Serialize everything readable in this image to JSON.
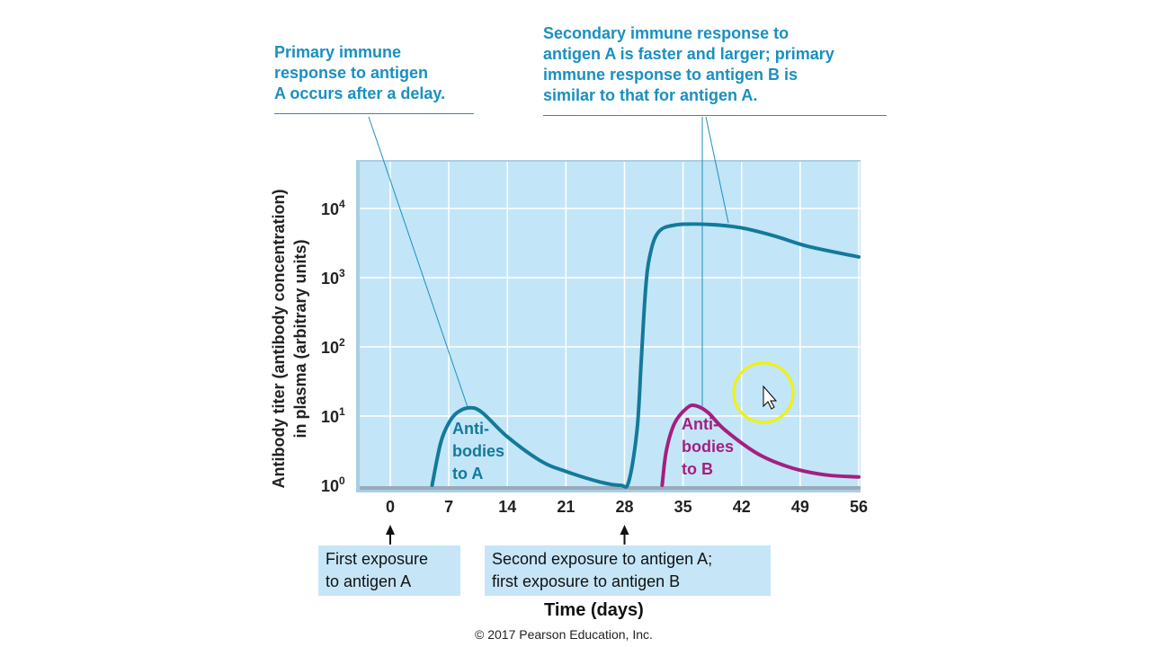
{
  "chart_data": {
    "type": "line",
    "xlabel": "Time (days)",
    "ylabel_line1": "Antibody titer (antibody concentration)",
    "ylabel_line2": "in plasma (arbitrary units)",
    "x_ticks": [
      "0",
      "7",
      "14",
      "21",
      "28",
      "35",
      "42",
      "49",
      "56"
    ],
    "y_ticks": [
      {
        "base": "10",
        "exp": "0"
      },
      {
        "base": "10",
        "exp": "1"
      },
      {
        "base": "10",
        "exp": "2"
      },
      {
        "base": "10",
        "exp": "3"
      },
      {
        "base": "10",
        "exp": "4"
      }
    ],
    "xlim": [
      -3.5,
      56
    ],
    "ylim_log10": [
      0,
      4.7
    ],
    "grid": true,
    "series": [
      {
        "name": "Antibodies to A",
        "label_lines": [
          "Anti-",
          "bodies",
          "to A"
        ],
        "color": "#137a99",
        "x": [
          5,
          6,
          7,
          8,
          9.5,
          11,
          14,
          18,
          21,
          25,
          27.5,
          28.5,
          29.5,
          30,
          30.5,
          31,
          32,
          34,
          38,
          42,
          46,
          50,
          56
        ],
        "log10_y": [
          0,
          0.6,
          0.9,
          1.05,
          1.12,
          1.05,
          0.7,
          0.35,
          0.2,
          0.05,
          0,
          0.05,
          0.8,
          1.8,
          2.8,
          3.3,
          3.65,
          3.76,
          3.77,
          3.72,
          3.6,
          3.45,
          3.3
        ]
      },
      {
        "name": "Antibodies to B",
        "label_lines": [
          "Anti-",
          "bodies",
          "to B"
        ],
        "color": "#a3207f",
        "x": [
          32.5,
          33,
          34,
          35.5,
          36.5,
          38,
          40,
          44,
          48,
          52,
          56
        ],
        "log10_y": [
          0,
          0.5,
          0.9,
          1.12,
          1.15,
          1.05,
          0.8,
          0.45,
          0.25,
          0.15,
          0.12
        ]
      }
    ],
    "annotations": {
      "primary": [
        "Primary immune",
        "response to antigen",
        "A occurs after a delay."
      ],
      "secondary": [
        [
          "Secondary immune response",
          " to"
        ],
        [
          "antigen A is faster and larger; ",
          "primary"
        ],
        [
          "immune response",
          " to antigen B is"
        ],
        [
          "similar to that for antigen A.",
          ""
        ]
      ],
      "exposure1": [
        "First exposure",
        "to antigen A"
      ],
      "exposure2": [
        "Second exposure to antigen A;",
        "first exposure to antigen B"
      ]
    },
    "copyright": "© 2017 Pearson Education, Inc."
  }
}
